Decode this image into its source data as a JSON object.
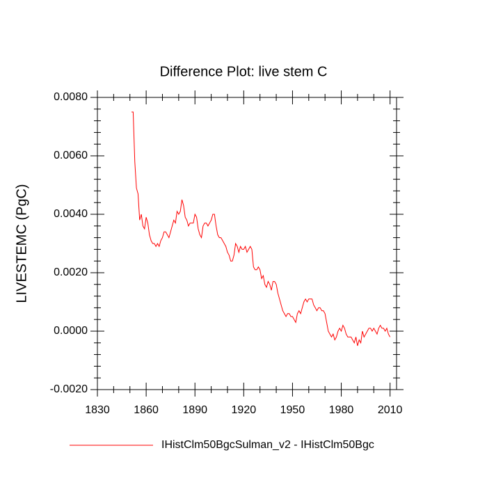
{
  "chart_data": {
    "type": "line",
    "title": "Difference Plot: live stem C",
    "y_label": "LIVESTEMC  (PgC)",
    "xlim": [
      1830,
      2014
    ],
    "xticks": [
      1830,
      1860,
      1890,
      1920,
      1950,
      1980,
      2010
    ],
    "ylim": [
      -0.002,
      0.008
    ],
    "yticks": [
      {
        "value": -0.002,
        "label": "-0.0020"
      },
      {
        "value": 0,
        "label": "0.0000"
      },
      {
        "value": 0.002,
        "label": "0.0020"
      },
      {
        "value": 0.004,
        "label": "0.0040"
      },
      {
        "value": 0.006,
        "label": "0.0060"
      },
      {
        "value": 0.008,
        "label": "0.0080"
      }
    ],
    "x": [
      1851,
      1852,
      1853,
      1854,
      1855,
      1856,
      1857,
      1858,
      1859,
      1860,
      1861,
      1862,
      1863,
      1864,
      1865,
      1866,
      1867,
      1868,
      1869,
      1870,
      1871,
      1872,
      1873,
      1874,
      1875,
      1876,
      1877,
      1878,
      1879,
      1880,
      1881,
      1882,
      1883,
      1884,
      1885,
      1886,
      1887,
      1888,
      1889,
      1890,
      1891,
      1892,
      1893,
      1894,
      1895,
      1896,
      1897,
      1898,
      1899,
      1900,
      1901,
      1902,
      1903,
      1904,
      1905,
      1906,
      1907,
      1908,
      1909,
      1910,
      1911,
      1912,
      1913,
      1914,
      1915,
      1916,
      1917,
      1918,
      1919,
      1920,
      1921,
      1922,
      1923,
      1924,
      1925,
      1926,
      1927,
      1928,
      1929,
      1930,
      1931,
      1932,
      1933,
      1934,
      1935,
      1936,
      1937,
      1938,
      1939,
      1940,
      1941,
      1942,
      1943,
      1944,
      1945,
      1946,
      1947,
      1948,
      1949,
      1950,
      1951,
      1952,
      1953,
      1954,
      1955,
      1956,
      1957,
      1958,
      1959,
      1960,
      1961,
      1962,
      1963,
      1964,
      1965,
      1966,
      1967,
      1968,
      1969,
      1970,
      1971,
      1972,
      1973,
      1974,
      1975,
      1976,
      1977,
      1978,
      1979,
      1980,
      1981,
      1982,
      1983,
      1984,
      1985,
      1986,
      1987,
      1988,
      1989,
      1990,
      1991,
      1992,
      1993,
      1994,
      1995,
      1996,
      1997,
      1998,
      1999,
      2000,
      2001,
      2002,
      2003,
      2004,
      2005,
      2006,
      2007,
      2008,
      2009,
      2010
    ],
    "series": [
      {
        "name": "IHistClm50BgcSulman_v2 - IHistClm50Bgc",
        "color": "#ff0000",
        "values": [
          0.0075,
          0.0075,
          0.0058,
          0.0049,
          0.0047,
          0.0038,
          0.004,
          0.0036,
          0.0035,
          0.0039,
          0.0037,
          0.0033,
          0.0031,
          0.003,
          0.003,
          0.0029,
          0.003,
          0.0029,
          0.0031,
          0.0032,
          0.0034,
          0.0034,
          0.0033,
          0.0032,
          0.0034,
          0.0036,
          0.0038,
          0.0037,
          0.0041,
          0.004,
          0.0041,
          0.0045,
          0.0043,
          0.0039,
          0.0038,
          0.0036,
          0.0037,
          0.0037,
          0.0037,
          0.004,
          0.0039,
          0.0035,
          0.0033,
          0.0032,
          0.0036,
          0.0037,
          0.0037,
          0.0036,
          0.0037,
          0.0038,
          0.004,
          0.004,
          0.0036,
          0.0033,
          0.0032,
          0.0032,
          0.0031,
          0.003,
          0.0029,
          0.0027,
          0.0026,
          0.0024,
          0.0024,
          0.0026,
          0.003,
          0.0029,
          0.0027,
          0.0029,
          0.0028,
          0.0028,
          0.0029,
          0.0027,
          0.0028,
          0.0029,
          0.0028,
          0.0022,
          0.0021,
          0.0021,
          0.0022,
          0.0021,
          0.0018,
          0.0019,
          0.0016,
          0.0015,
          0.0017,
          0.0016,
          0.0014,
          0.0017,
          0.0017,
          0.0016,
          0.0013,
          0.0011,
          0.0009,
          0.0007,
          0.0006,
          0.0005,
          0.0006,
          0.0006,
          0.0005,
          0.0005,
          0.0004,
          0.0003,
          0.0006,
          0.0007,
          0.0006,
          0.0008,
          0.001,
          0.0011,
          0.001,
          0.0011,
          0.0011,
          0.0011,
          0.0009,
          0.0008,
          0.0007,
          0.0008,
          0.0008,
          0.0007,
          0.0007,
          0.0006,
          0.0003,
          0.0,
          -0.0001,
          -0.0002,
          -0.0001,
          -0.0003,
          -0.0002,
          0.0,
          0.0001,
          0.0,
          0.0002,
          0.0001,
          -0.0001,
          -0.0002,
          -0.0002,
          -0.0002,
          -0.0003,
          -0.0004,
          -0.0002,
          -0.0005,
          -0.0003,
          -0.0004,
          0.0,
          -0.0002,
          -0.0001,
          0.0,
          0.0001,
          0.0001,
          0.0,
          0.0001,
          0.0,
          -0.0001,
          0.0001,
          0.0002,
          0.0001,
          0.0001,
          0.0,
          0.0001,
          -0.0001,
          -0.0002
        ]
      }
    ],
    "legend": "bottom"
  }
}
